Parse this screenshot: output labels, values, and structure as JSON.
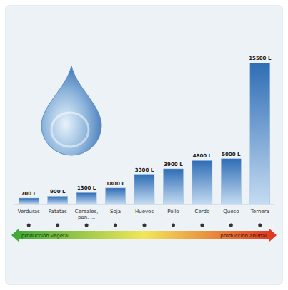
{
  "chart_data": {
    "type": "bar",
    "categories": [
      "Verduras",
      "Patatas",
      "Cereales, pan, ...",
      "Soja",
      "Huevos",
      "Pollo",
      "Cerdo",
      "Queso",
      "Ternera"
    ],
    "values": [
      700,
      900,
      1300,
      1800,
      3300,
      3900,
      4800,
      5000,
      15500
    ],
    "value_labels": [
      "700 L",
      "900 L",
      "1300 L",
      "1800 L",
      "3300 L",
      "3900 L",
      "4800 L",
      "5000 L",
      "15500 L"
    ],
    "color": "#2f6db5",
    "ylim": [
      0,
      15500
    ],
    "data_labels": true,
    "tick_labels": "x",
    "annotations": [
      "producción vegetal",
      "producción animal"
    ]
  }
}
